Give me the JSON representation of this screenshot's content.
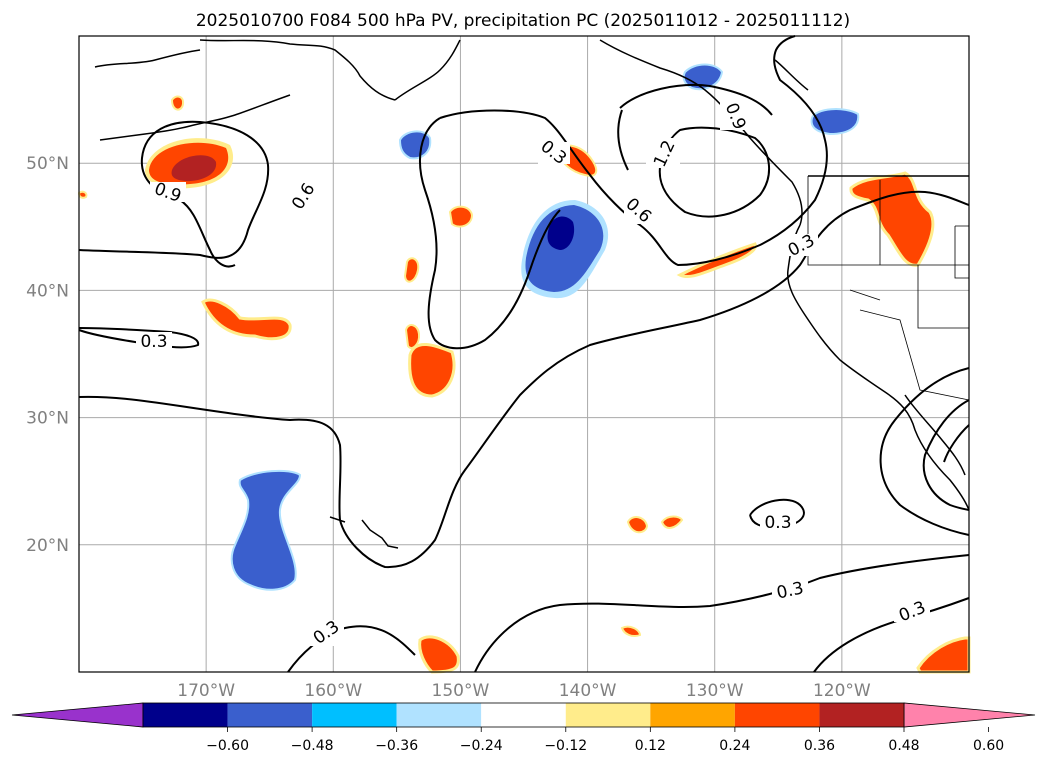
{
  "title": "2025010700 F084 500 hPa PV, precipitation PC (2025011012 - 2025011112)",
  "map": {
    "projection": "plate-carree",
    "lon_range": [
      -180,
      -110
    ],
    "lat_range": [
      10,
      60
    ],
    "gridlines": true,
    "lat_ticks": [
      {
        "value": 50,
        "label": "50°N"
      },
      {
        "value": 40,
        "label": "40°N"
      },
      {
        "value": 30,
        "label": "30°N"
      },
      {
        "value": 20,
        "label": "20°N"
      }
    ],
    "lon_ticks": [
      {
        "value": -170,
        "label": "170°W"
      },
      {
        "value": -160,
        "label": "160°W"
      },
      {
        "value": -150,
        "label": "150°W"
      },
      {
        "value": -140,
        "label": "140°W"
      },
      {
        "value": -130,
        "label": "130°W"
      },
      {
        "value": -120,
        "label": "120°W"
      }
    ]
  },
  "contour_labels": [
    "0.3",
    "0.6",
    "0.9",
    "1.2"
  ],
  "colorbar": {
    "extend": "both",
    "ticks": [
      "−0.60",
      "−0.48",
      "−0.36",
      "−0.24",
      "−0.12",
      "0.12",
      "0.24",
      "0.36",
      "0.48",
      "0.60"
    ],
    "colors": [
      "#9932cc",
      "#00008b",
      "#3a5fcd",
      "#00bfff",
      "#b0e2ff",
      "#ffffff",
      "#ffec8b",
      "#ffa500",
      "#ff4500",
      "#b22222",
      "#ff82ab"
    ]
  }
}
